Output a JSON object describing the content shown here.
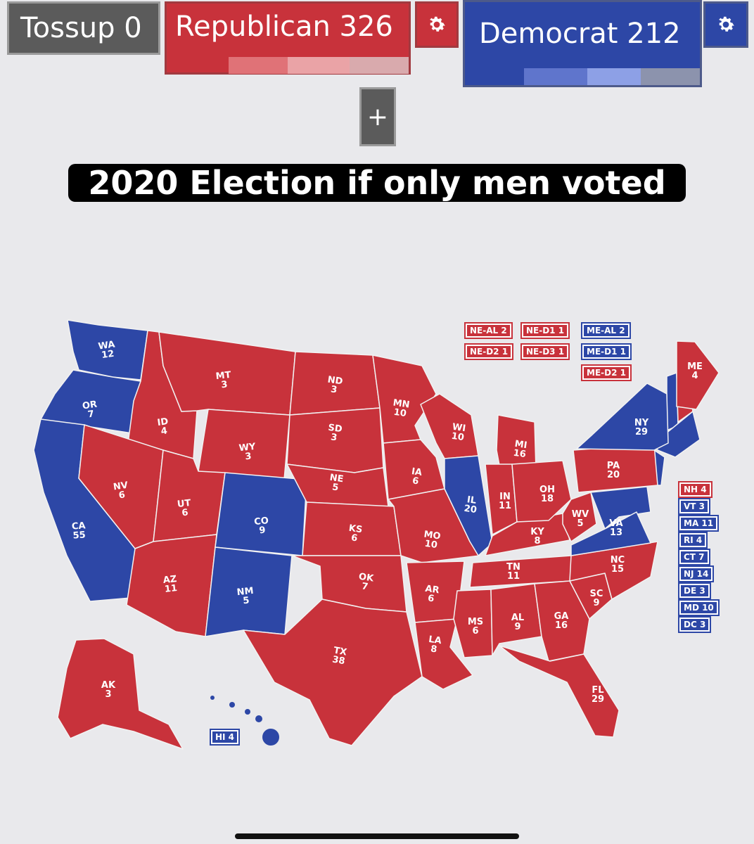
{
  "header": {
    "tossup_label": "Tossup 0",
    "republican_label": "Republican 326",
    "democrat_label": "Democrat 212",
    "plus_label": "+"
  },
  "caption": "2020 Election if only men voted",
  "map": {
    "colors": {
      "republican": "#c8323b",
      "democrat": "#2d47a6",
      "border": "#f2f2f2"
    },
    "states": [
      {
        "abbr": "WA",
        "ev": "12",
        "party": "D"
      },
      {
        "abbr": "OR",
        "ev": "7",
        "party": "D"
      },
      {
        "abbr": "CA",
        "ev": "55",
        "party": "D"
      },
      {
        "abbr": "ID",
        "ev": "4",
        "party": "R"
      },
      {
        "abbr": "NV",
        "ev": "6",
        "party": "R"
      },
      {
        "abbr": "MT",
        "ev": "3",
        "party": "R"
      },
      {
        "abbr": "WY",
        "ev": "3",
        "party": "R"
      },
      {
        "abbr": "UT",
        "ev": "6",
        "party": "R"
      },
      {
        "abbr": "AZ",
        "ev": "11",
        "party": "R"
      },
      {
        "abbr": "CO",
        "ev": "9",
        "party": "D"
      },
      {
        "abbr": "NM",
        "ev": "5",
        "party": "D"
      },
      {
        "abbr": "ND",
        "ev": "3",
        "party": "R"
      },
      {
        "abbr": "SD",
        "ev": "3",
        "party": "R"
      },
      {
        "abbr": "NE",
        "ev": "5",
        "party": "R"
      },
      {
        "abbr": "KS",
        "ev": "6",
        "party": "R"
      },
      {
        "abbr": "OK",
        "ev": "7",
        "party": "R"
      },
      {
        "abbr": "TX",
        "ev": "38",
        "party": "R"
      },
      {
        "abbr": "MN",
        "ev": "10",
        "party": "R"
      },
      {
        "abbr": "IA",
        "ev": "6",
        "party": "R"
      },
      {
        "abbr": "MO",
        "ev": "10",
        "party": "R"
      },
      {
        "abbr": "AR",
        "ev": "6",
        "party": "R"
      },
      {
        "abbr": "LA",
        "ev": "8",
        "party": "R"
      },
      {
        "abbr": "WI",
        "ev": "10",
        "party": "R"
      },
      {
        "abbr": "IL",
        "ev": "20",
        "party": "D"
      },
      {
        "abbr": "MS",
        "ev": "6",
        "party": "R"
      },
      {
        "abbr": "MI",
        "ev": "16",
        "party": "R"
      },
      {
        "abbr": "IN",
        "ev": "11",
        "party": "R"
      },
      {
        "abbr": "KY",
        "ev": "8",
        "party": "R"
      },
      {
        "abbr": "TN",
        "ev": "11",
        "party": "R"
      },
      {
        "abbr": "AL",
        "ev": "9",
        "party": "R"
      },
      {
        "abbr": "OH",
        "ev": "18",
        "party": "R"
      },
      {
        "abbr": "GA",
        "ev": "16",
        "party": "R"
      },
      {
        "abbr": "FL",
        "ev": "29",
        "party": "R"
      },
      {
        "abbr": "SC",
        "ev": "9",
        "party": "R"
      },
      {
        "abbr": "NC",
        "ev": "15",
        "party": "R"
      },
      {
        "abbr": "VA",
        "ev": "13",
        "party": "D"
      },
      {
        "abbr": "WV",
        "ev": "5",
        "party": "R"
      },
      {
        "abbr": "PA",
        "ev": "20",
        "party": "R"
      },
      {
        "abbr": "NY",
        "ev": "29",
        "party": "D"
      },
      {
        "abbr": "ME",
        "ev": "4",
        "party": "R"
      },
      {
        "abbr": "AK",
        "ev": "3",
        "party": "R"
      }
    ],
    "hawaii_tag": {
      "label": "HI 4",
      "party": "D"
    },
    "split_tags": [
      {
        "label": "NE-AL 2",
        "party": "R"
      },
      {
        "label": "NE-D1 1",
        "party": "R"
      },
      {
        "label": "NE-D2 1",
        "party": "R"
      },
      {
        "label": "NE-D3 1",
        "party": "R"
      },
      {
        "label": "ME-AL 2",
        "party": "D"
      },
      {
        "label": "ME-D1 1",
        "party": "D"
      },
      {
        "label": "ME-D2 1",
        "party": "R"
      }
    ],
    "east_tags": [
      {
        "label": "NH 4",
        "party": "R"
      },
      {
        "label": "VT 3",
        "party": "D"
      },
      {
        "label": "MA 11",
        "party": "D"
      },
      {
        "label": "RI 4",
        "party": "D"
      },
      {
        "label": "CT 7",
        "party": "D"
      },
      {
        "label": "NJ 14",
        "party": "D"
      },
      {
        "label": "DE 3",
        "party": "D"
      },
      {
        "label": "MD 10",
        "party": "D"
      },
      {
        "label": "DC 3",
        "party": "D"
      }
    ]
  }
}
